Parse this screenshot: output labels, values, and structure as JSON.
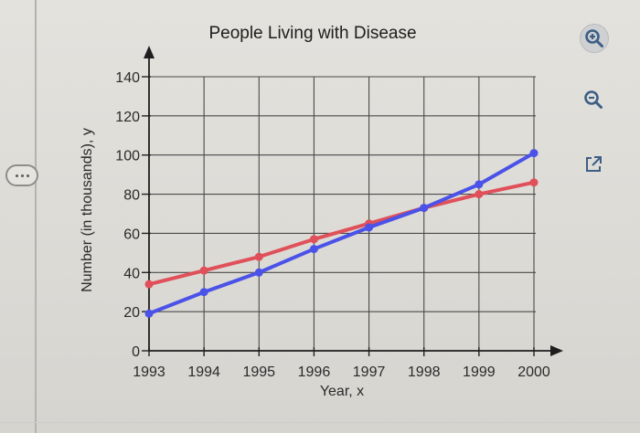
{
  "toolbar": {
    "zoom_in_icon": "zoom-in-icon",
    "zoom_out_icon": "zoom-out-icon",
    "popout_icon": "popout-icon",
    "accent": "#3d5f86"
  },
  "chart_data": {
    "type": "line",
    "title": "People Living with Disease",
    "xlabel": "Year, x",
    "ylabel": "Number (in thousands), y",
    "categories": [
      "1993",
      "1994",
      "1995",
      "1996",
      "1997",
      "1998",
      "1999",
      "2000"
    ],
    "yticks": [
      0,
      20,
      40,
      60,
      80,
      100,
      120,
      140
    ],
    "ytick_labels": [
      "0",
      "20",
      "40",
      "60",
      "80",
      "100",
      "120",
      "140"
    ],
    "ylim": [
      0,
      140
    ],
    "grid": true,
    "series": [
      {
        "name": "red series",
        "color": "#e0505a",
        "values": [
          34,
          41,
          48,
          57,
          65,
          73,
          80,
          86
        ]
      },
      {
        "name": "blue series",
        "color": "#4a52e8",
        "values": [
          19,
          30,
          40,
          52,
          63,
          73,
          85,
          101
        ]
      }
    ]
  }
}
